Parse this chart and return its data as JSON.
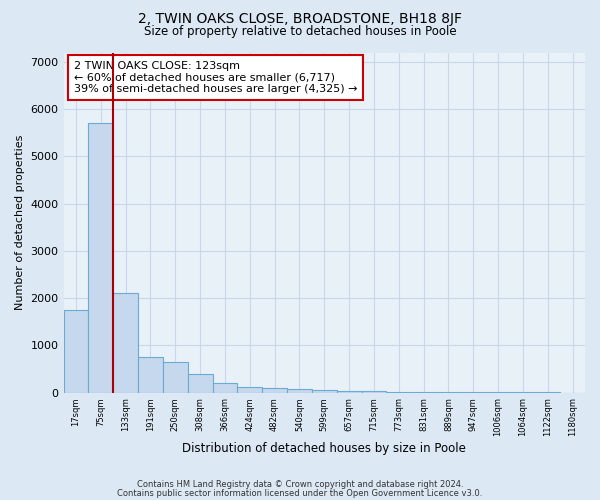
{
  "title": "2, TWIN OAKS CLOSE, BROADSTONE, BH18 8JF",
  "subtitle": "Size of property relative to detached houses in Poole",
  "xlabel": "Distribution of detached houses by size in Poole",
  "ylabel": "Number of detached properties",
  "bin_labels": [
    "17sqm",
    "75sqm",
    "133sqm",
    "191sqm",
    "250sqm",
    "308sqm",
    "366sqm",
    "424sqm",
    "482sqm",
    "540sqm",
    "599sqm",
    "657sqm",
    "715sqm",
    "773sqm",
    "831sqm",
    "889sqm",
    "947sqm",
    "1006sqm",
    "1064sqm",
    "1122sqm",
    "1180sqm"
  ],
  "bar_heights": [
    1750,
    5700,
    2100,
    750,
    650,
    390,
    200,
    120,
    90,
    70,
    55,
    40,
    30,
    20,
    15,
    10,
    6,
    4,
    3,
    2,
    1
  ],
  "bar_color": "#c5d8ed",
  "bar_edge_color": "#6aaad4",
  "property_line_bin": 1,
  "annotation_text": "2 TWIN OAKS CLOSE: 123sqm\n← 60% of detached houses are smaller (6,717)\n39% of semi-detached houses are larger (4,325) →",
  "annotation_box_color": "#ffffff",
  "annotation_box_edge_color": "#cc0000",
  "vline_color": "#aa0000",
  "ylim": [
    0,
    7200
  ],
  "yticks": [
    0,
    1000,
    2000,
    3000,
    4000,
    5000,
    6000,
    7000
  ],
  "footer_line1": "Contains HM Land Registry data © Crown copyright and database right 2024.",
  "footer_line2": "Contains public sector information licensed under the Open Government Licence v3.0.",
  "background_color": "#dce9f5",
  "plot_background_color": "#e8f1f8",
  "grid_color": "#c8d8e8"
}
